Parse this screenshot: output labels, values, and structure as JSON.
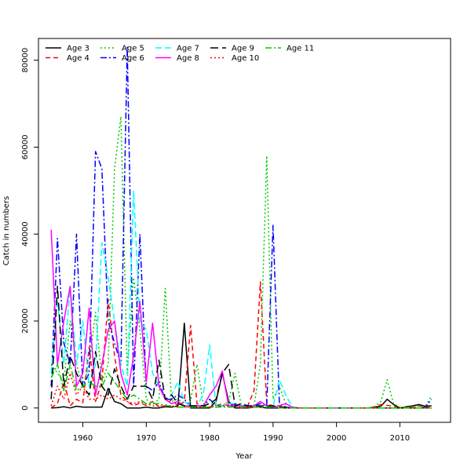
{
  "chart_data": {
    "type": "line",
    "title": "",
    "xlabel": "Year",
    "ylabel": "Catch in numbers",
    "xlim": [
      1953,
      2018
    ],
    "ylim": [
      -3300,
      85000
    ],
    "xticks": [
      1960,
      1970,
      1980,
      1990,
      2000,
      2010
    ],
    "yticks": [
      0,
      20000,
      40000,
      60000,
      80000
    ],
    "x": [
      1955,
      1956,
      1957,
      1958,
      1959,
      1960,
      1961,
      1962,
      1963,
      1964,
      1965,
      1966,
      1967,
      1968,
      1969,
      1970,
      1971,
      1972,
      1973,
      1974,
      1975,
      1976,
      1977,
      1978,
      1979,
      1980,
      1981,
      1982,
      1983,
      1984,
      1985,
      1986,
      1987,
      1988,
      1989,
      1990,
      1991,
      1992,
      1993,
      1994,
      1995,
      1996,
      1997,
      1998,
      1999,
      2000,
      2001,
      2002,
      2003,
      2004,
      2005,
      2006,
      2007,
      2008,
      2009,
      2010,
      2011,
      2012,
      2013,
      2014,
      2015
    ],
    "legend": {
      "position": "top-left",
      "columns": 6
    },
    "series": [
      {
        "name": "Age 3",
        "color": "#000000",
        "dash": "",
        "values": [
          0,
          100,
          300,
          0,
          400,
          200,
          200,
          200,
          200,
          4500,
          1500,
          1000,
          0,
          0,
          0,
          200,
          0,
          0,
          300,
          200,
          500,
          19500,
          0,
          0,
          0,
          0,
          1500,
          8000,
          1500,
          0,
          0,
          0,
          200,
          200,
          0,
          0,
          0,
          0,
          0,
          0,
          0,
          0,
          0,
          0,
          0,
          0,
          0,
          0,
          0,
          0,
          0,
          200,
          400,
          2000,
          800,
          0,
          300,
          500,
          800,
          400,
          500
        ]
      },
      {
        "name": "Age 4",
        "color": "#ff0000",
        "dash": "6,4",
        "values": [
          100,
          1000,
          6000,
          500,
          2000,
          1200,
          14000,
          1500,
          6000,
          25000,
          12000,
          3000,
          1500,
          500,
          1200,
          600,
          1500,
          300,
          500,
          2000,
          500,
          1500,
          19000,
          1000,
          500,
          200,
          500,
          1000,
          500,
          500,
          0,
          500,
          4000,
          29000,
          1000,
          500,
          500,
          200,
          0,
          0,
          0,
          0,
          0,
          0,
          0,
          0,
          0,
          0,
          0,
          0,
          0,
          300,
          800,
          600,
          400,
          0,
          200,
          300,
          500,
          200,
          300
        ]
      },
      {
        "name": "Age 5",
        "color": "#00cc00",
        "dash": "2,3",
        "values": [
          10000,
          8000,
          6000,
          20000,
          10000,
          5000,
          10000,
          22000,
          6000,
          10000,
          55000,
          67000,
          8000,
          30000,
          18000,
          2000,
          1000,
          2000,
          27500,
          1500,
          2000,
          1000,
          1500,
          10000,
          1000,
          1000,
          1000,
          500,
          1500,
          8000,
          500,
          300,
          500,
          10000,
          58000,
          2000,
          5000,
          1000,
          200,
          100,
          0,
          0,
          0,
          0,
          0,
          0,
          0,
          0,
          0,
          0,
          0,
          300,
          1500,
          6500,
          1000,
          200,
          100,
          300,
          500,
          300,
          2800
        ]
      },
      {
        "name": "Age 6",
        "color": "#0000ff",
        "dash": "8,3,2,3",
        "values": [
          5000,
          39000,
          15000,
          10000,
          40000,
          5000,
          8000,
          59000,
          55000,
          20000,
          15000,
          10000,
          83000,
          5000,
          40000,
          5000,
          4000,
          6000,
          2000,
          2000,
          3000,
          2000,
          500,
          500,
          500,
          2000,
          500,
          500,
          500,
          1000,
          500,
          500,
          500,
          1000,
          500,
          42000,
          1000,
          200,
          0,
          0,
          0,
          0,
          0,
          0,
          0,
          0,
          0,
          0,
          0,
          0,
          0,
          0,
          0,
          0,
          0,
          0,
          0,
          0,
          0,
          200,
          2000
        ]
      },
      {
        "name": "Age 7",
        "color": "#00ffff",
        "dash": "8,4",
        "values": [
          8000,
          25000,
          10000,
          28000,
          10000,
          20000,
          5000,
          10000,
          38000,
          30000,
          20000,
          10000,
          5000,
          50000,
          20000,
          18000,
          8000,
          5000,
          2000,
          3000,
          6000,
          1500,
          500,
          500,
          3000,
          14500,
          500,
          500,
          1000,
          1000,
          500,
          200,
          500,
          500,
          300,
          200,
          6500,
          3000,
          200,
          0,
          0,
          0,
          0,
          0,
          0,
          0,
          0,
          0,
          0,
          0,
          0,
          0,
          0,
          0,
          0,
          0,
          0,
          0,
          0,
          0,
          0
        ]
      },
      {
        "name": "Age 8",
        "color": "#ff00ff",
        "dash": "",
        "values": [
          41000,
          10000,
          20000,
          28000,
          5000,
          8000,
          23000,
          3000,
          10000,
          18000,
          20000,
          8000,
          3000,
          12000,
          24500,
          6000,
          19500,
          5000,
          2000,
          1000,
          1500,
          500,
          500,
          500,
          500,
          3000,
          5000,
          8500,
          500,
          500,
          500,
          200,
          500,
          1500,
          500,
          200,
          500,
          1000,
          200,
          0,
          0,
          0,
          0,
          0,
          0,
          0,
          0,
          0,
          0,
          0,
          0,
          0,
          0,
          0,
          0,
          0,
          0,
          0,
          0,
          0,
          0
        ]
      },
      {
        "name": "Age 9",
        "color": "#000000",
        "dash": "10,5",
        "values": [
          2000,
          28000,
          5000,
          12000,
          8000,
          5000,
          3000,
          13000,
          5000,
          3000,
          9000,
          5000,
          2000,
          5000,
          5000,
          5000,
          2000,
          11000,
          2000,
          3000,
          1000,
          500,
          500,
          500,
          500,
          1000,
          2000,
          8000,
          10000,
          500,
          1000,
          500,
          500,
          500,
          500,
          500,
          200,
          200,
          0,
          0,
          0,
          0,
          0,
          0,
          0,
          0,
          0,
          0,
          0,
          0,
          0,
          0,
          0,
          0,
          0,
          0,
          0,
          0,
          0,
          0,
          0
        ]
      },
      {
        "name": "Age 10",
        "color": "#ff0000",
        "dash": "2,3",
        "values": [
          500,
          5000,
          2000,
          8000,
          3000,
          5000,
          2000,
          2000,
          3000,
          2000,
          3000,
          2000,
          1500,
          1000,
          1500,
          1000,
          500,
          500,
          500,
          500,
          200,
          200,
          200,
          200,
          200,
          200,
          200,
          500,
          500,
          200,
          200,
          200,
          200,
          200,
          200,
          200,
          0,
          0,
          0,
          0,
          0,
          0,
          0,
          0,
          0,
          0,
          0,
          0,
          0,
          0,
          0,
          0,
          0,
          0,
          0,
          0,
          0,
          0,
          0,
          0,
          0
        ]
      },
      {
        "name": "Age 11",
        "color": "#00cc00",
        "dash": "8,3,2,3",
        "values": [
          7000,
          10000,
          4000,
          10000,
          4000,
          5000,
          6000,
          5000,
          5000,
          8000,
          6000,
          4000,
          2000,
          3000,
          2000,
          1000,
          1000,
          1000,
          500,
          500,
          200,
          200,
          200,
          200,
          200,
          200,
          200,
          200,
          200,
          200,
          200,
          200,
          200,
          200,
          200,
          200,
          0,
          0,
          0,
          0,
          0,
          0,
          0,
          0,
          0,
          0,
          0,
          0,
          0,
          0,
          0,
          0,
          0,
          0,
          0,
          0,
          0,
          0,
          0,
          0,
          0
        ]
      }
    ]
  }
}
